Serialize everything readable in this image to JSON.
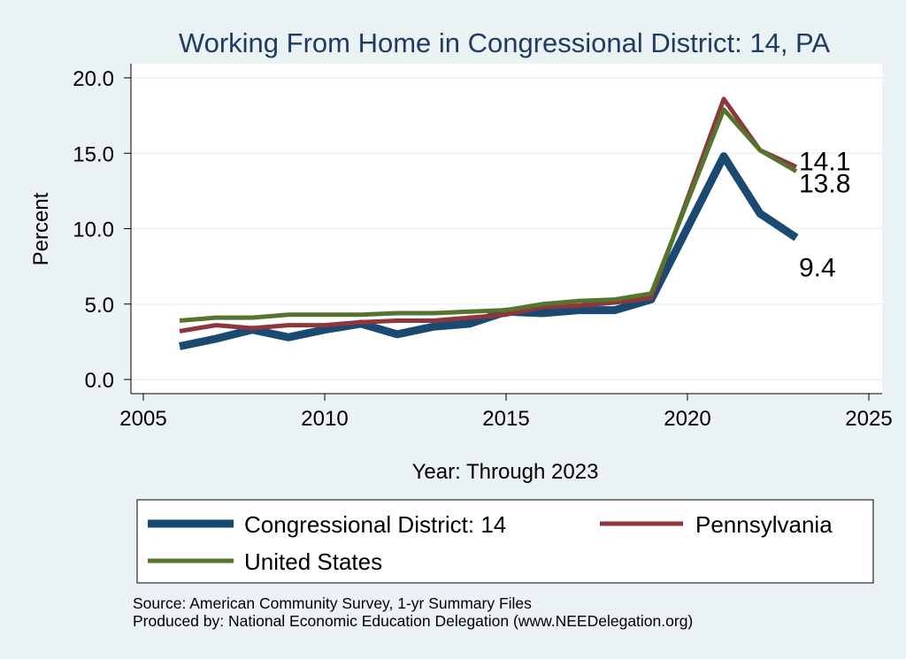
{
  "chart_data": {
    "type": "line",
    "title": "Working From Home in Congressional District: 14, PA",
    "xlabel": "Year: Through 2023",
    "ylabel": "Percent",
    "xlim": [
      2005,
      2025
    ],
    "ylim": [
      0,
      20
    ],
    "xticks": [
      "2005",
      "2010",
      "2015",
      "2020",
      "2025"
    ],
    "yticks": [
      "0.0",
      "5.0",
      "10.0",
      "15.0",
      "20.0"
    ],
    "grid": true,
    "legend_position": "bottom",
    "x": [
      2006,
      2007,
      2008,
      2009,
      2010,
      2011,
      2012,
      2013,
      2014,
      2015,
      2016,
      2017,
      2018,
      2019,
      2021,
      2022,
      2023
    ],
    "series": [
      {
        "name": "Congressional District: 14",
        "color": "#1a4a72",
        "values": [
          2.2,
          2.7,
          3.3,
          2.8,
          3.3,
          3.7,
          3.0,
          3.5,
          3.7,
          4.5,
          4.4,
          4.6,
          4.6,
          5.3,
          14.8,
          11.0,
          9.4
        ],
        "end_label": "9.4"
      },
      {
        "name": "Pennsylvania",
        "color": "#90353b",
        "values": [
          3.2,
          3.6,
          3.4,
          3.6,
          3.6,
          3.8,
          3.9,
          3.9,
          4.1,
          4.3,
          4.8,
          4.9,
          5.1,
          5.4,
          18.6,
          15.2,
          14.1
        ],
        "end_label": "14.1"
      },
      {
        "name": "United States",
        "color": "#55752f",
        "values": [
          3.9,
          4.1,
          4.1,
          4.3,
          4.3,
          4.3,
          4.4,
          4.4,
          4.5,
          4.6,
          5.0,
          5.2,
          5.3,
          5.7,
          17.9,
          15.2,
          13.8
        ],
        "end_label": "13.8"
      }
    ]
  },
  "notes": {
    "source": "Source: American Community Survey, 1-yr Summary Files",
    "produced": "Produced by: National Economic Education Delegation (www.NEEDelegation.org)"
  }
}
